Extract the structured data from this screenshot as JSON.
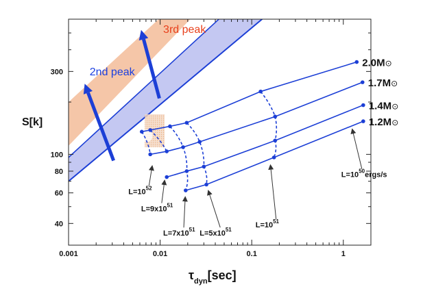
{
  "chart_data": {
    "type": "line",
    "xlabel": {
      "main": "τ",
      "sub": "dyn",
      "suffix": "[sec]"
    },
    "ylabel": "S[k]",
    "xscale": "log",
    "yscale": "log",
    "xlim": [
      0.001,
      2.0
    ],
    "ylim": [
      30,
      600
    ],
    "grid": false,
    "x_ticks": [
      {
        "value": 0.001,
        "label": "0.001"
      },
      {
        "value": 0.01,
        "label": "0.01"
      },
      {
        "value": 0.1,
        "label": "0.1"
      },
      {
        "value": 1,
        "label": "1"
      }
    ],
    "y_ticks": [
      {
        "value": 40,
        "label": "40"
      },
      {
        "value": 60,
        "label": "60"
      },
      {
        "value": 80,
        "label": "80"
      },
      {
        "value": 100,
        "label": "100"
      },
      {
        "value": 300,
        "label": "300"
      }
    ],
    "bands": [
      {
        "name": "3rd peak",
        "label": "3rd peak",
        "color": "#f5c6a8",
        "label_color": "#e8401c",
        "lower_edge": [
          [
            0.001,
            112
          ],
          [
            0.024,
            640
          ]
        ],
        "upper_edge": [
          [
            0.001,
            200
          ],
          [
            0.011,
            640
          ]
        ]
      },
      {
        "name": "2nd peak",
        "label": "2nd peak",
        "color": "#c4c8f2",
        "label_color": "#1a3fe0",
        "lower_edge": [
          [
            0.001,
            70
          ],
          [
            0.15,
            640
          ]
        ],
        "upper_edge": [
          [
            0.001,
            96
          ],
          [
            0.05,
            640
          ]
        ]
      }
    ],
    "series": [
      {
        "name": "2.0M⊙",
        "label_main": "2.0M",
        "label_symbol": "⊙",
        "x": [
          0.0063,
          0.0078,
          0.0128,
          0.0195,
          0.125,
          1.4
        ],
        "y": [
          135,
          138,
          145,
          152,
          230,
          340
        ]
      },
      {
        "name": "1.7M⊙",
        "label_main": "1.7M",
        "label_symbol": "⊙",
        "x": [
          0.0078,
          0.0118,
          0.0178,
          0.027,
          0.18,
          1.62
        ],
        "y": [
          100,
          104,
          110,
          118,
          165,
          260
        ]
      },
      {
        "name": "1.4M⊙",
        "label_main": "1.4M",
        "label_symbol": "⊙",
        "x": [
          0.0118,
          0.0195,
          0.03,
          0.18,
          1.65
        ],
        "y": [
          74,
          80,
          85,
          120,
          192
        ]
      },
      {
        "name": "1.2M⊙",
        "label_main": "1.2M",
        "label_symbol": "⊙",
        "x": [
          0.019,
          0.032,
          0.175,
          1.65
        ],
        "y": [
          62,
          67,
          96,
          155
        ]
      }
    ],
    "luminosity_curves": [
      {
        "name": "L=10^52",
        "x": [
          0.0063,
          0.0078
        ]
      },
      {
        "name": "L=9x10^51",
        "x": [
          0.0078,
          0.0118
        ]
      },
      {
        "name": "L=7x10^51",
        "x": [
          0.0128,
          0.0178,
          0.0195,
          0.019
        ]
      },
      {
        "name": "L=5x10^51",
        "x": [
          0.0195,
          0.027,
          0.03,
          0.032
        ]
      },
      {
        "name": "L=10^51",
        "x": [
          0.125,
          0.18,
          0.18,
          0.175
        ]
      }
    ],
    "annotations": [
      {
        "base": "L=10",
        "exp": "52",
        "tail": "",
        "x": 0.0045,
        "y": 59,
        "arrow_to": [
          0.0082,
          86
        ]
      },
      {
        "base": "L=9x10",
        "exp": "51",
        "tail": "",
        "x": 0.0062,
        "y": 47,
        "arrow_to": [
          0.0112,
          71
        ]
      },
      {
        "base": "L=7x10",
        "exp": "51",
        "tail": "",
        "x": 0.0108,
        "y": 34,
        "arrow_to": [
          0.0188,
          57
        ]
      },
      {
        "base": "L=5x10",
        "exp": "51",
        "tail": "",
        "x": 0.027,
        "y": 34,
        "arrow_to": [
          0.0335,
          62
        ]
      },
      {
        "base": "L=10",
        "exp": "51",
        "tail": "",
        "x": 0.11,
        "y": 38,
        "arrow_to": [
          0.16,
          87
        ]
      },
      {
        "base": "L=10",
        "exp": "50",
        "tail": "ergs/s",
        "x": 0.95,
        "y": 74,
        "arrow_to": [
          1.25,
          140
        ]
      }
    ]
  }
}
